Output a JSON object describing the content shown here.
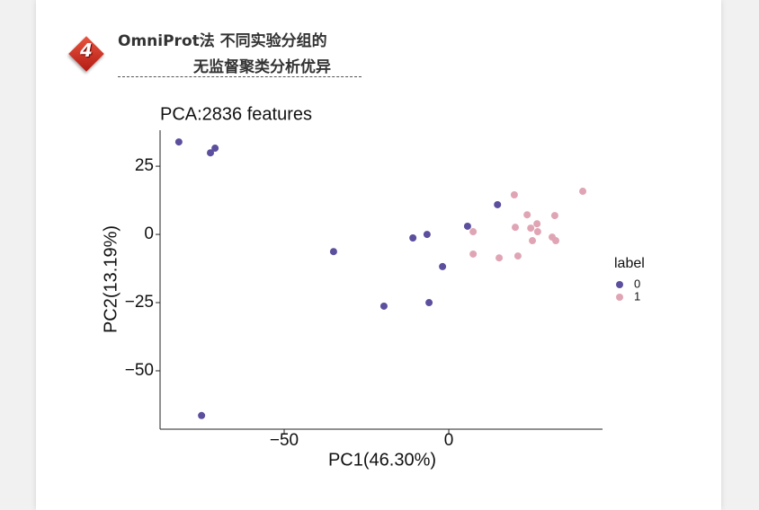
{
  "header": {
    "badge": "4",
    "title_line1": "OmniProt法 不同实验分组的",
    "title_line2": "无监督聚类分析优异"
  },
  "chart_data": {
    "type": "scatter",
    "title": "PCA:2836 features",
    "x_label": "PC1(46.30%)",
    "y_label": "PC2(13.19%)",
    "legend_title": "label",
    "xlim": [
      -87.7,
      46.7
    ],
    "ylim": [
      -71.4,
      38.2
    ],
    "xticks": [
      {
        "value": -50,
        "label": "−50"
      },
      0
    ],
    "yticks": [
      {
        "value": -50,
        "label": "−50"
      },
      {
        "value": -25,
        "label": "−25"
      },
      0,
      25
    ],
    "series": [
      {
        "name": "0",
        "color": "#5b4f9e",
        "x": [
          -82.0,
          -71.0,
          -72.4,
          -35.0,
          -10.9,
          -6.6,
          -1.9,
          -19.7,
          -6.0,
          5.7,
          14.8,
          -75.1
        ],
        "values": [
          33.9,
          31.6,
          29.9,
          -6.3,
          -1.3,
          0,
          -11.8,
          -26.3,
          -25.0,
          3.0,
          10.9,
          -66.4
        ]
      },
      {
        "name": "1",
        "color": "#e0a5b5",
        "x": [
          19.9,
          40.7,
          23.8,
          32.2,
          26.8,
          20.2,
          24.9,
          27.0,
          7.4,
          31.4,
          32.5,
          25.4,
          7.4,
          15.3,
          21.0
        ],
        "values": [
          14.5,
          15.8,
          7.2,
          6.9,
          3.9,
          2.6,
          2.3,
          1.0,
          1.0,
          -1.0,
          -2.3,
          -2.3,
          -7.2,
          -8.6,
          -7.9
        ]
      }
    ]
  }
}
